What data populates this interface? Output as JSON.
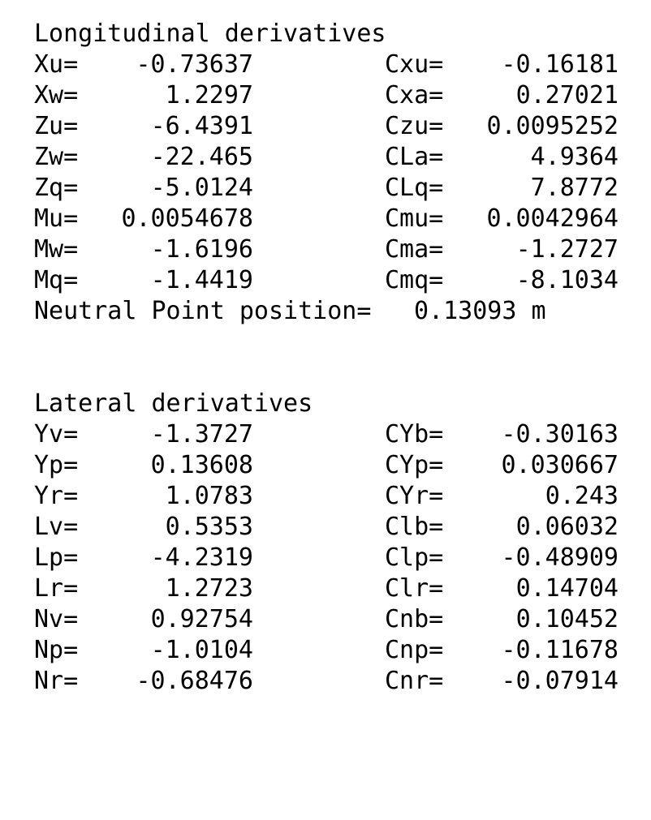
{
  "longitudinal": {
    "title": "Longitudinal derivatives",
    "rows": [
      {
        "l": "Xu=",
        "lv": "-0.73637",
        "r": "Cxu=",
        "rv": "-0.16181"
      },
      {
        "l": "Xw=",
        "lv": "1.2297",
        "r": "Cxa=",
        "rv": "0.27021"
      },
      {
        "l": "Zu=",
        "lv": "-6.4391",
        "r": "Czu=",
        "rv": "0.0095252"
      },
      {
        "l": "Zw=",
        "lv": "-22.465",
        "r": "CLa=",
        "rv": "4.9364"
      },
      {
        "l": "Zq=",
        "lv": "-5.0124",
        "r": "CLq=",
        "rv": "7.8772"
      },
      {
        "l": "Mu=",
        "lv": "0.0054678",
        "r": "Cmu=",
        "rv": "0.0042964"
      },
      {
        "l": "Mw=",
        "lv": "-1.6196",
        "r": "Cma=",
        "rv": "-1.2727"
      },
      {
        "l": "Mq=",
        "lv": "-1.4419",
        "r": "Cmq=",
        "rv": "-8.1034"
      }
    ],
    "neutral_point_label": "Neutral Point position=",
    "neutral_point_value": "0.13093 m"
  },
  "lateral": {
    "title": "Lateral derivatives",
    "rows": [
      {
        "l": "Yv=",
        "lv": "-1.3727",
        "r": "CYb=",
        "rv": "-0.30163"
      },
      {
        "l": "Yp=",
        "lv": "0.13608",
        "r": "CYp=",
        "rv": "0.030667"
      },
      {
        "l": "Yr=",
        "lv": "1.0783",
        "r": "CYr=",
        "rv": "0.243"
      },
      {
        "l": "Lv=",
        "lv": "0.5353",
        "r": "Clb=",
        "rv": "0.06032"
      },
      {
        "l": "Lp=",
        "lv": "-4.2319",
        "r": "Clp=",
        "rv": "-0.48909"
      },
      {
        "l": "Lr=",
        "lv": "1.2723",
        "r": "Clr=",
        "rv": "0.14704"
      },
      {
        "l": "Nv=",
        "lv": "0.92754",
        "r": "Cnb=",
        "rv": "0.10452"
      },
      {
        "l": "Np=",
        "lv": "-1.0104",
        "r": "Cnp=",
        "rv": "-0.11678"
      },
      {
        "l": "Nr=",
        "lv": "-0.68476",
        "r": "Cnr=",
        "rv": "-0.07914"
      }
    ]
  }
}
